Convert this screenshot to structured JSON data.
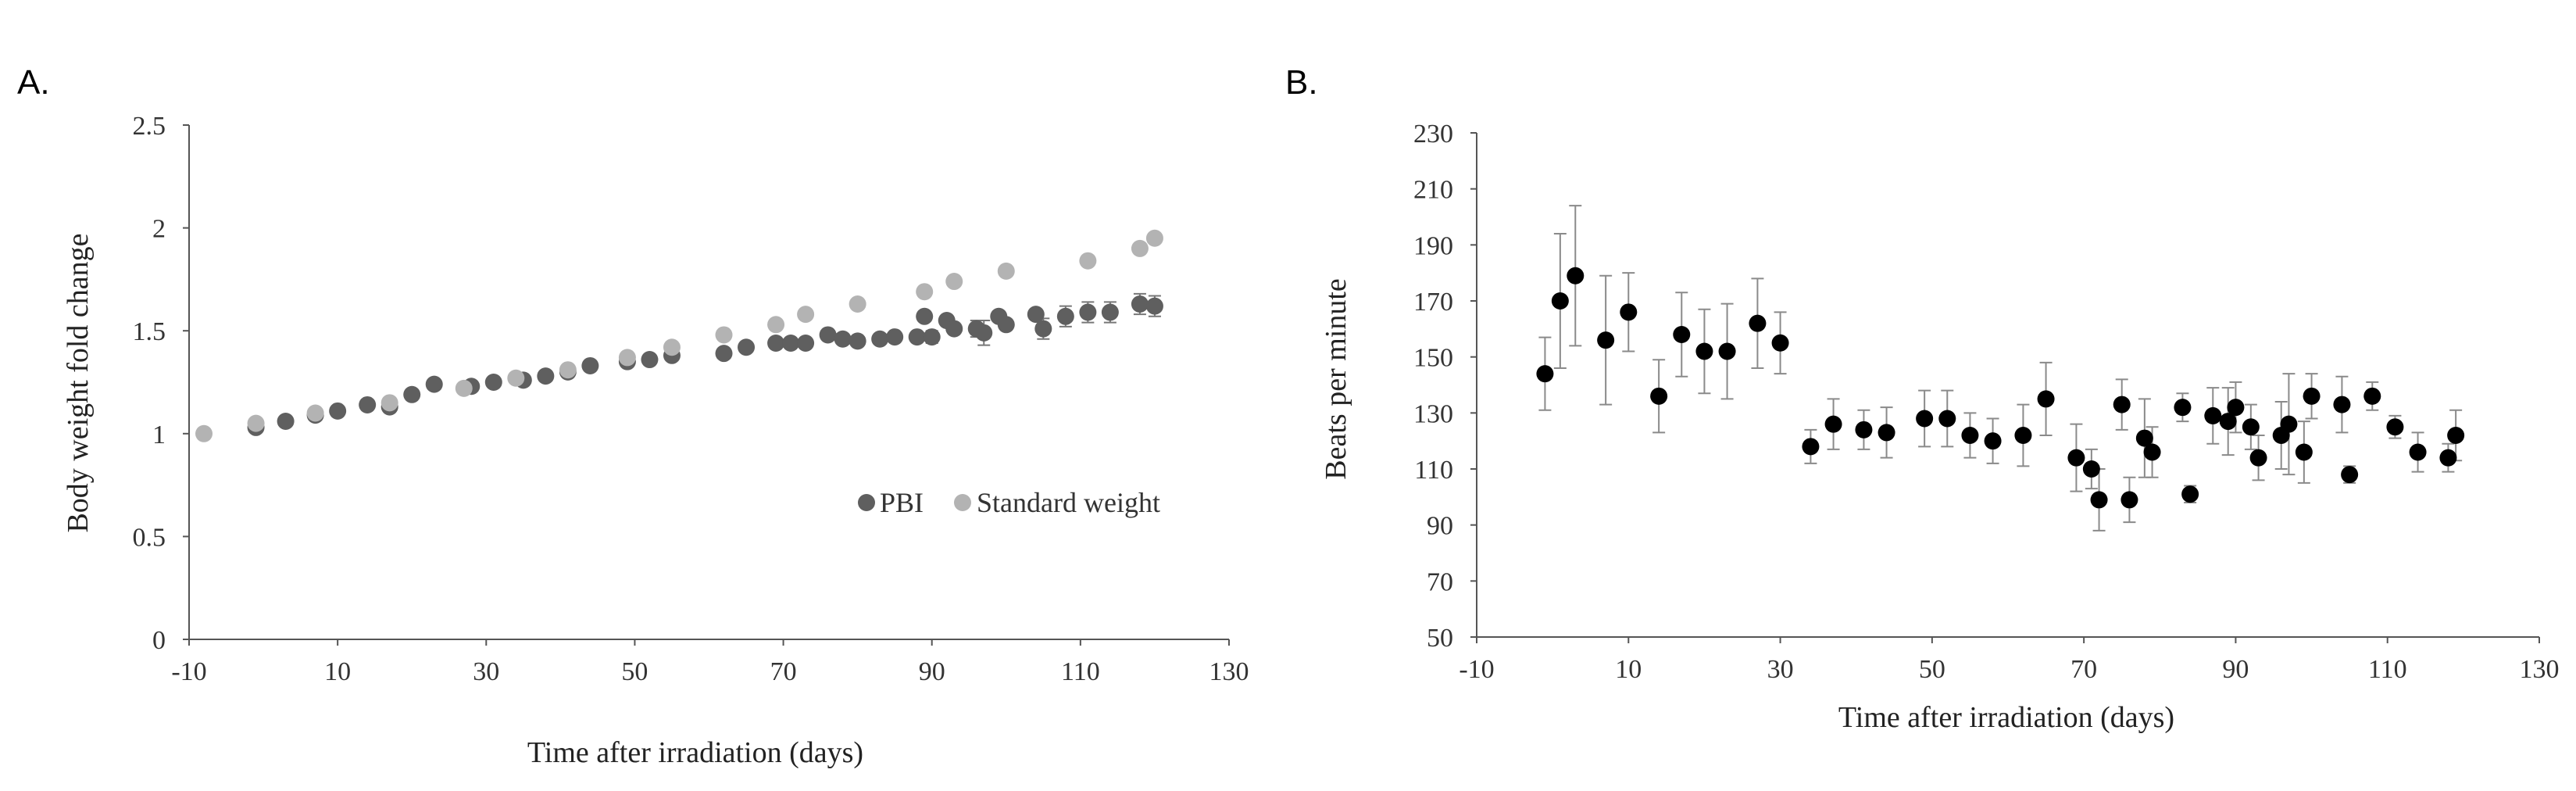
{
  "chart_data": [
    {
      "panel_label": "A.",
      "type": "scatter",
      "title": "",
      "xlabel": "Time after irradiation (days)",
      "ylabel": "Body weight fold change",
      "xlim": [
        -10,
        130
      ],
      "ylim": [
        0,
        2.5
      ],
      "x_ticks": [
        "-10",
        "10",
        "30",
        "50",
        "70",
        "90",
        "110",
        "130"
      ],
      "y_ticks": [
        "0",
        "0.5",
        "1",
        "1.5",
        "2",
        "2.5"
      ],
      "legend": [
        "PBI",
        "Standard weight"
      ],
      "legend_position": "bottom-right",
      "series": [
        {
          "name": "PBI",
          "color": "#5f5f5f",
          "x": [
            -1,
            3,
            7,
            10,
            14,
            17,
            20,
            23,
            28,
            31,
            35,
            38,
            41,
            44,
            49,
            52,
            55,
            62,
            65,
            69,
            71,
            73,
            76,
            78,
            80,
            83,
            85,
            88,
            89,
            90,
            92,
            93,
            96,
            97,
            99,
            100,
            104,
            105,
            108,
            111,
            114,
            118,
            120
          ],
          "y": [
            1.03,
            1.06,
            1.09,
            1.11,
            1.14,
            1.13,
            1.19,
            1.24,
            1.23,
            1.25,
            1.26,
            1.28,
            1.3,
            1.33,
            1.35,
            1.36,
            1.38,
            1.39,
            1.42,
            1.44,
            1.44,
            1.44,
            1.48,
            1.46,
            1.45,
            1.46,
            1.47,
            1.47,
            1.57,
            1.47,
            1.55,
            1.51,
            1.51,
            1.49,
            1.57,
            1.53,
            1.58,
            1.51,
            1.57,
            1.59,
            1.59,
            1.63,
            1.62
          ],
          "errors": [
            0.01,
            0.01,
            0.01,
            0.01,
            0.01,
            0.01,
            0.01,
            0.01,
            0.01,
            0.01,
            0.01,
            0.01,
            0.01,
            0.01,
            0.01,
            0.01,
            0.01,
            0.01,
            0.01,
            0.02,
            0.02,
            0.02,
            0.02,
            0.02,
            0.02,
            0.02,
            0.02,
            0.02,
            0.02,
            0.03,
            0.02,
            0.02,
            0.04,
            0.06,
            0.02,
            0.02,
            0.02,
            0.05,
            0.05,
            0.05,
            0.05,
            0.05,
            0.05
          ]
        },
        {
          "name": "Standard weight",
          "color": "#b3b3b3",
          "x": [
            -8,
            -1,
            7,
            17,
            27,
            34,
            41,
            49,
            55,
            62,
            69,
            73,
            80,
            89,
            93,
            100,
            111,
            118,
            120
          ],
          "y": [
            1.0,
            1.05,
            1.1,
            1.15,
            1.22,
            1.27,
            1.31,
            1.37,
            1.42,
            1.48,
            1.53,
            1.58,
            1.63,
            1.69,
            1.74,
            1.79,
            1.84,
            1.9,
            1.95
          ]
        }
      ]
    },
    {
      "panel_label": "B.",
      "type": "scatter",
      "title": "",
      "xlabel": "Time after irradiation (days)",
      "ylabel": "Beats per minute",
      "xlim": [
        -10,
        130
      ],
      "ylim": [
        50,
        230
      ],
      "x_ticks": [
        "-10",
        "10",
        "30",
        "50",
        "70",
        "90",
        "110",
        "130"
      ],
      "y_ticks": [
        "50",
        "70",
        "90",
        "110",
        "130",
        "150",
        "170",
        "190",
        "210",
        "230"
      ],
      "series": [
        {
          "name": "Beats per minute",
          "color": "#000000",
          "x": [
            -1,
            1,
            3,
            7,
            10,
            14,
            17,
            20,
            23,
            27,
            30,
            34,
            37,
            41,
            44,
            49,
            52,
            55,
            58,
            62,
            65,
            69,
            71,
            72,
            75,
            76,
            78,
            79,
            83,
            84,
            87,
            89,
            90,
            92,
            93,
            96,
            97,
            99,
            100,
            104,
            105,
            108,
            111,
            114,
            118,
            119
          ],
          "y": [
            144,
            170,
            179,
            156,
            166,
            136,
            158,
            152,
            152,
            162,
            155,
            118,
            126,
            124,
            123,
            128,
            128,
            122,
            120,
            122,
            135,
            114,
            110,
            99,
            133,
            99,
            121,
            116,
            132,
            101,
            129,
            127,
            132,
            125,
            114,
            122,
            126,
            116,
            136,
            133,
            108,
            136,
            125,
            116,
            114,
            122
          ],
          "errors": [
            13,
            24,
            25,
            23,
            14,
            13,
            15,
            15,
            17,
            16,
            11,
            6,
            9,
            7,
            9,
            10,
            10,
            8,
            8,
            11,
            13,
            12,
            7,
            11,
            9,
            8,
            14,
            9,
            5,
            3,
            10,
            12,
            9,
            8,
            8,
            12,
            18,
            11,
            8,
            10,
            3,
            5,
            4,
            7,
            5,
            9
          ]
        }
      ]
    }
  ]
}
